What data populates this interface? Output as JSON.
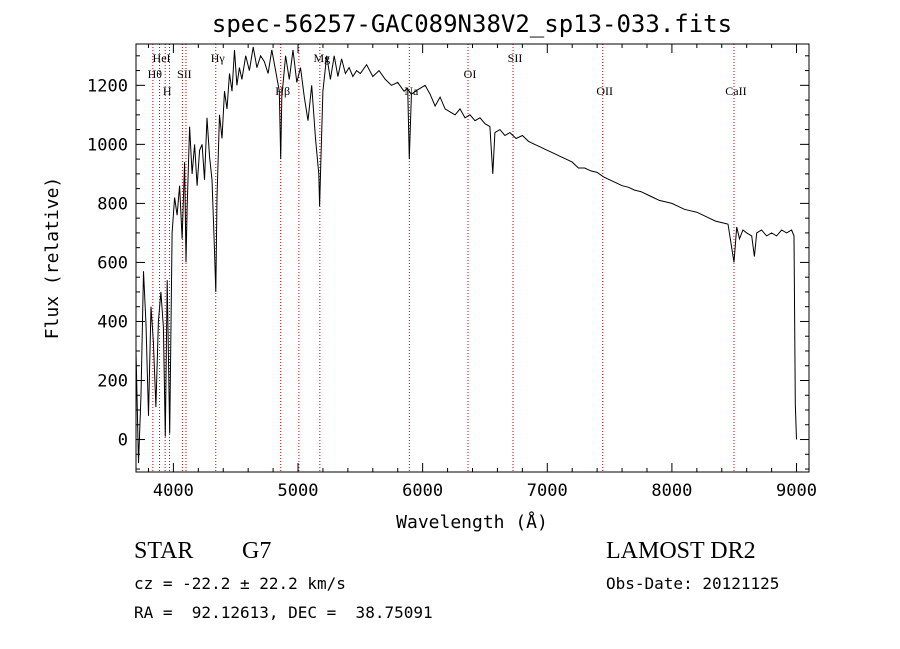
{
  "chart_data": {
    "type": "line",
    "title": "spec-56257-GAC089N38V2_sp13-033.fits",
    "xlabel": "Wavelength (Å)",
    "ylabel": "Flux (relative)",
    "xlim": [
      3700,
      9100
    ],
    "ylim": [
      -110,
      1340
    ],
    "xticks": [
      4000,
      5000,
      6000,
      7000,
      8000,
      9000
    ],
    "yticks": [
      0,
      200,
      400,
      600,
      800,
      1000,
      1200
    ],
    "grid": false,
    "line_color": "#000000",
    "marker_color": "#cc0000",
    "series": [
      {
        "x": [
          3700,
          3720,
          3740,
          3760,
          3780,
          3800,
          3820,
          3840,
          3860,
          3880,
          3900,
          3920,
          3935,
          3950,
          3970,
          3990,
          4010,
          4030,
          4050,
          4070,
          4090,
          4101,
          4110,
          4130,
          4150,
          4170,
          4190,
          4210,
          4230,
          4250,
          4270,
          4290,
          4310,
          4330,
          4340,
          4350,
          4370,
          4390,
          4410,
          4430,
          4450,
          4470,
          4490,
          4510,
          4530,
          4550,
          4580,
          4610,
          4640,
          4670,
          4700,
          4730,
          4760,
          4790,
          4820,
          4850,
          4861,
          4870,
          4900,
          4930,
          4960,
          4990,
          5020,
          5050,
          5080,
          5110,
          5140,
          5167,
          5173,
          5184,
          5200,
          5230,
          5260,
          5290,
          5320,
          5350,
          5380,
          5410,
          5440,
          5470,
          5500,
          5550,
          5600,
          5650,
          5700,
          5750,
          5800,
          5850,
          5880,
          5893,
          5910,
          5940,
          5980,
          6020,
          6060,
          6100,
          6140,
          6180,
          6220,
          6260,
          6300,
          6340,
          6380,
          6420,
          6460,
          6500,
          6540,
          6563,
          6580,
          6620,
          6660,
          6700,
          6750,
          6800,
          6850,
          6900,
          6950,
          7000,
          7050,
          7100,
          7150,
          7200,
          7250,
          7300,
          7350,
          7400,
          7450,
          7500,
          7550,
          7600,
          7650,
          7700,
          7750,
          7800,
          7850,
          7900,
          7950,
          8000,
          8050,
          8100,
          8150,
          8200,
          8250,
          8300,
          8350,
          8400,
          8450,
          8498,
          8520,
          8542,
          8570,
          8600,
          8640,
          8662,
          8680,
          8720,
          8760,
          8800,
          8840,
          8880,
          8920,
          8960,
          8980,
          8990,
          9000
        ],
        "y": [
          300,
          -80,
          150,
          570,
          390,
          80,
          450,
          330,
          110,
          400,
          500,
          380,
          10,
          540,
          20,
          700,
          820,
          760,
          860,
          680,
          940,
          600,
          780,
          1060,
          900,
          1000,
          860,
          980,
          1000,
          880,
          1090,
          960,
          880,
          640,
          500,
          820,
          1100,
          1020,
          1180,
          1120,
          1240,
          1180,
          1320,
          1200,
          1260,
          1220,
          1300,
          1250,
          1330,
          1260,
          1300,
          1280,
          1240,
          1320,
          1250,
          1180,
          950,
          1160,
          1300,
          1220,
          1320,
          1210,
          1260,
          1160,
          1080,
          1200,
          1020,
          900,
          790,
          960,
          1180,
          1300,
          1220,
          1300,
          1230,
          1290,
          1240,
          1260,
          1230,
          1250,
          1240,
          1270,
          1230,
          1250,
          1220,
          1200,
          1210,
          1180,
          1190,
          950,
          1170,
          1180,
          1190,
          1200,
          1170,
          1130,
          1160,
          1120,
          1110,
          1100,
          1120,
          1090,
          1100,
          1080,
          1090,
          1070,
          1060,
          900,
          1040,
          1050,
          1030,
          1040,
          1020,
          1030,
          1010,
          1000,
          990,
          980,
          970,
          960,
          950,
          940,
          920,
          920,
          910,
          905,
          890,
          880,
          870,
          860,
          855,
          845,
          840,
          830,
          820,
          810,
          805,
          800,
          790,
          780,
          775,
          770,
          760,
          750,
          740,
          735,
          730,
          600,
          720,
          680,
          710,
          700,
          690,
          620,
          700,
          710,
          690,
          700,
          690,
          710,
          700,
          710,
          690,
          120,
          0
        ]
      }
    ],
    "line_markers": [
      {
        "x": 3835,
        "label": "Hθ",
        "level": 1
      },
      {
        "x": 3889,
        "label": "HeI",
        "level": 0
      },
      {
        "x": 3934,
        "label": "H",
        "level": 2
      },
      {
        "x": 3969,
        "label": "",
        "level": -1
      },
      {
        "x": 4072,
        "label": "SII",
        "level": 1
      },
      {
        "x": 4101,
        "label": "",
        "level": -1
      },
      {
        "x": 4340,
        "label": "Hγ",
        "level": 0
      },
      {
        "x": 4861,
        "label": "Hβ",
        "level": 2
      },
      {
        "x": 5007,
        "label": "",
        "level": -1
      },
      {
        "x": 5175,
        "label": "Mg",
        "level": 0
      },
      {
        "x": 5893,
        "label": "Na",
        "level": 2
      },
      {
        "x": 6364,
        "label": "OI",
        "level": 1
      },
      {
        "x": 6725,
        "label": "SII",
        "level": 0
      },
      {
        "x": 7445,
        "label": "OII",
        "level": 2
      },
      {
        "x": 8498,
        "label": "CaII",
        "level": 2
      }
    ]
  },
  "footer": {
    "object_type": "STAR",
    "subclass": "G7",
    "cz": "cz = -22.2 ± 22.2 km/s",
    "coords": "RA =  92.12613, DEC =  38.75091",
    "survey": "LAMOST DR2",
    "obs_date": "Obs-Date: 20121125"
  }
}
